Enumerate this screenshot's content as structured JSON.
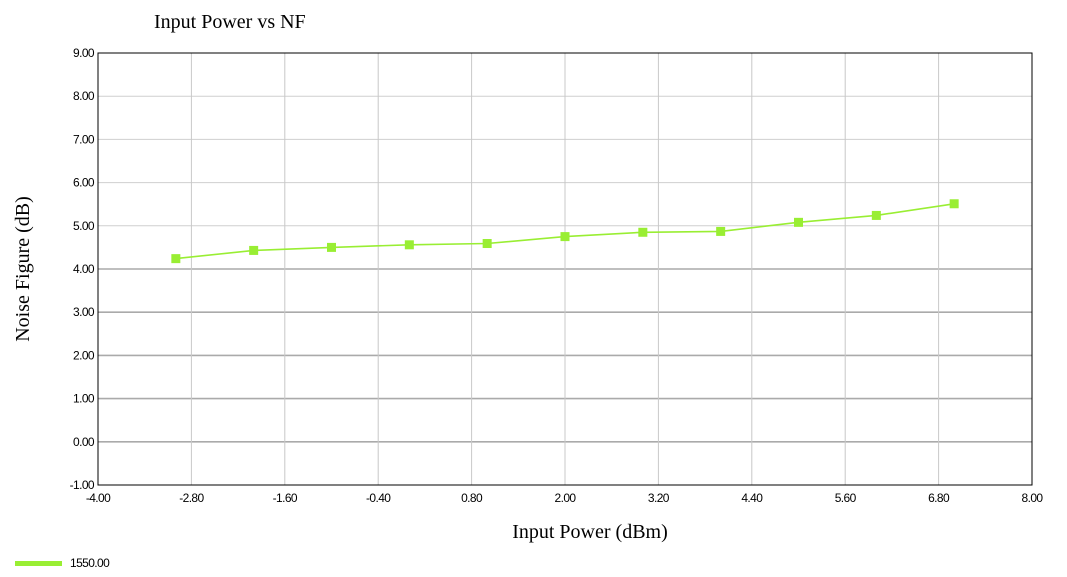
{
  "chart_data": {
    "type": "line",
    "title": "Input Power vs NF",
    "xlabel": "Input Power (dBm)",
    "ylabel": "Noise Figure (dB)",
    "xlim": [
      -4.0,
      8.0
    ],
    "ylim": [
      -1.0,
      9.0
    ],
    "x_ticks": [
      "-4.00",
      "-2.80",
      "-1.60",
      "-0.40",
      "0.80",
      "2.00",
      "3.20",
      "4.40",
      "5.60",
      "6.80",
      "8.00"
    ],
    "y_ticks": [
      "9.00",
      "8.00",
      "7.00",
      "6.00",
      "5.00",
      "4.00",
      "3.00",
      "2.00",
      "1.00",
      "0.00",
      "-1.00"
    ],
    "grid": true,
    "legend_position": "bottom-left",
    "series": [
      {
        "name": "1550.00",
        "color": "#99ee33",
        "marker": "square",
        "x": [
          -3.0,
          -2.0,
          -1.0,
          0.0,
          1.0,
          2.0,
          3.0,
          4.0,
          5.0,
          6.0,
          7.0
        ],
        "y": [
          4.24,
          4.43,
          4.5,
          4.56,
          4.59,
          4.75,
          4.85,
          4.87,
          5.08,
          5.24,
          5.51
        ]
      }
    ]
  }
}
